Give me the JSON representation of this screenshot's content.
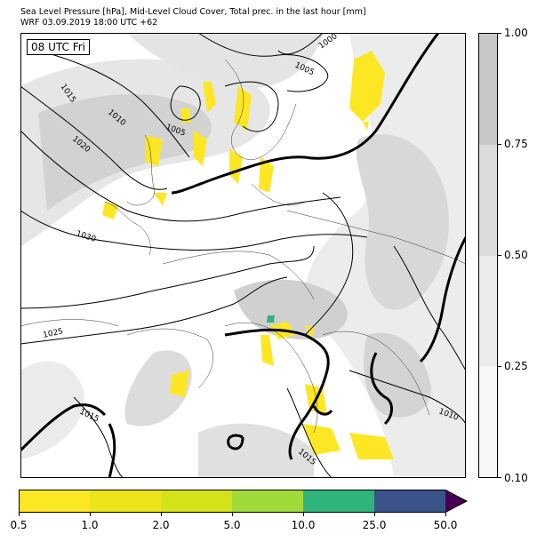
{
  "title_line1": "Sea Level Pressure [hPa], Mid-Level Cloud Cover, Total prec. in the last hour [mm]",
  "title_line2": "WRF 03.09.2019 18:00 UTC +62",
  "time_label": "08 UTC Fri",
  "isobar_labels": [
    {
      "id": "1000",
      "text": "1000"
    },
    {
      "id": "1005a",
      "text": "1005"
    },
    {
      "id": "1005b",
      "text": "1005"
    },
    {
      "id": "1010a",
      "text": "1010"
    },
    {
      "id": "1015a",
      "text": "1015"
    },
    {
      "id": "1020",
      "text": "1020"
    },
    {
      "id": "1030",
      "text": "1030"
    },
    {
      "id": "1025",
      "text": "1025"
    },
    {
      "id": "1015b",
      "text": "1015"
    },
    {
      "id": "1015c",
      "text": "1015"
    },
    {
      "id": "1010b",
      "text": "1010"
    }
  ],
  "cloud_colorbar": {
    "ticks": [
      "1.00",
      "0.75",
      "0.50",
      "0.25",
      "0.10"
    ],
    "colors": [
      "#c8c8c8",
      "#dcdcdc",
      "#ebebeb",
      "#f7f7f7"
    ]
  },
  "precip_colorbar": {
    "ticks": [
      "0.5",
      "1.0",
      "2.0",
      "5.0",
      "10.0",
      "25.0",
      "50.0"
    ],
    "colors": [
      "#fde725",
      "#ede51b",
      "#d4e21a",
      "#a0da39",
      "#2fb47c",
      "#3b528b",
      "#440154"
    ]
  },
  "colors": {
    "isobar": "#000000",
    "thick_isobar": "#000000",
    "coast": "#333333",
    "background": "#ffffff"
  }
}
